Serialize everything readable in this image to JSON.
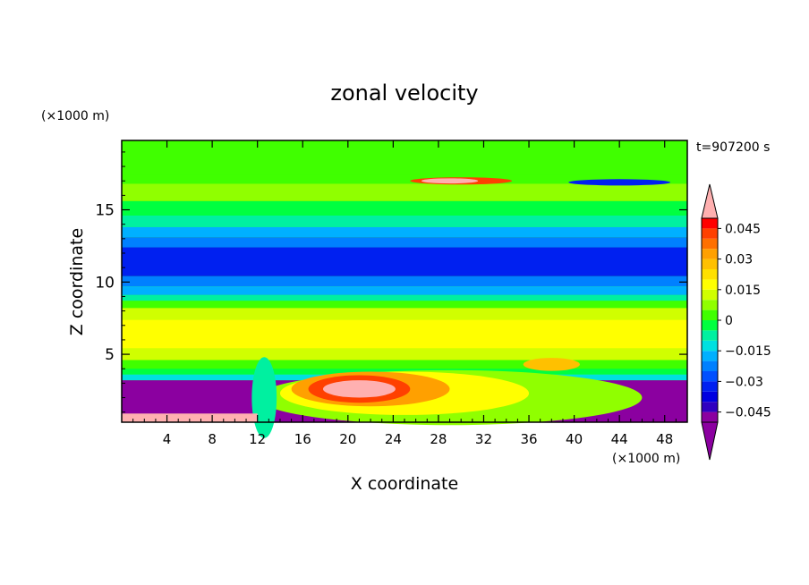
{
  "chart_data": {
    "type": "heatmap",
    "title": "zonal velocity",
    "time_label": "t=907200 s",
    "xlabel": "X coordinate",
    "ylabel": "Z coordinate",
    "x_unit": "(×1000 m)",
    "y_unit": "(×1000 m)",
    "xlim": [
      0,
      50
    ],
    "ylim": [
      0.3,
      19.8
    ],
    "x_ticks": [
      "4",
      "8",
      "12",
      "16",
      "20",
      "24",
      "28",
      "32",
      "36",
      "40",
      "44",
      "48"
    ],
    "x_tick_values": [
      4,
      8,
      12,
      16,
      20,
      24,
      28,
      32,
      36,
      40,
      44,
      48
    ],
    "y_ticks": [
      "5",
      "10",
      "15"
    ],
    "y_tick_values": [
      5,
      10,
      15
    ],
    "colorbar": {
      "levels": [
        -0.05,
        -0.045,
        -0.04,
        -0.035,
        -0.03,
        -0.025,
        -0.02,
        -0.015,
        -0.01,
        -0.005,
        0,
        0.005,
        0.01,
        0.015,
        0.02,
        0.025,
        0.03,
        0.035,
        0.04,
        0.045,
        0.05
      ],
      "colors": [
        "#8B00A0",
        "#3000C0",
        "#0000E0",
        "#0020F0",
        "#0050FF",
        "#0080FF",
        "#00B0FF",
        "#00E0E0",
        "#00F0A0",
        "#00FF40",
        "#40FF00",
        "#90FF00",
        "#D0FF00",
        "#FFFF00",
        "#FFE000",
        "#FFC000",
        "#FFA000",
        "#FF7000",
        "#FF4000",
        "#FF0000"
      ],
      "under_color": "#8B00A0",
      "over_color": "#FFB0B0",
      "tick_labels": [
        "0.045",
        "0.03",
        "0.015",
        "0",
        "−0.015",
        "−0.03",
        "−0.045"
      ],
      "tick_values": [
        0.045,
        0.03,
        0.015,
        0,
        -0.015,
        -0.03,
        -0.045
      ]
    }
  }
}
